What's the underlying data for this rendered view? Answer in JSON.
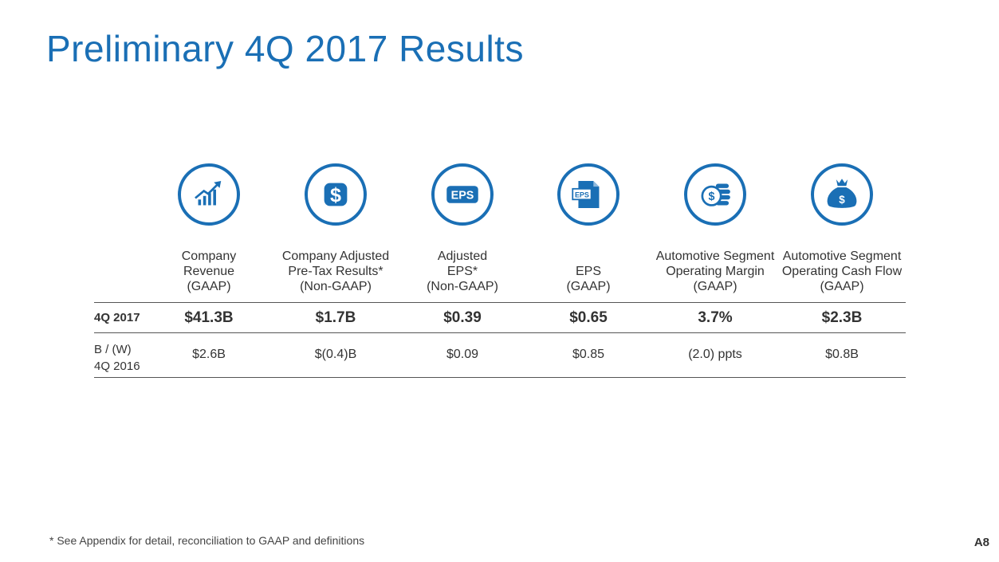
{
  "title": "Preliminary 4Q 2017 Results",
  "icons": {
    "dollar": "$",
    "eps_badge": "EPS",
    "eps_doc": "EPS",
    "coin": "$",
    "bag": "$"
  },
  "columns": [
    {
      "header": [
        "Company",
        "Revenue",
        "(GAAP)"
      ],
      "value": "$41.3B",
      "change": "$2.6B"
    },
    {
      "header": [
        "Company Adjusted",
        "Pre-Tax Results*",
        "(Non-GAAP)"
      ],
      "value": "$1.7B",
      "change": "$(0.4)B"
    },
    {
      "header": [
        "Adjusted",
        "EPS*",
        "(Non-GAAP)"
      ],
      "value": "$0.39",
      "change": "$0.09"
    },
    {
      "header": [
        "EPS",
        "(GAAP)"
      ],
      "value": "$0.65",
      "change": "$0.85"
    },
    {
      "header": [
        "Automotive Segment",
        "Operating Margin",
        "(GAAP)"
      ],
      "value": "3.7%",
      "change": "(2.0) ppts"
    },
    {
      "header": [
        "Automotive Segment",
        "Operating  Cash Flow",
        "(GAAP)"
      ],
      "value": "$2.3B",
      "change": "$0.8B"
    }
  ],
  "rows": {
    "current_label": "4Q 2017",
    "change_label": [
      "B / (W)",
      "4Q 2016"
    ]
  },
  "footnote": "*  See Appendix for detail, reconciliation to GAAP and definitions",
  "page_number": "A8",
  "colors": {
    "accent": "#1a6fb5",
    "text": "#333333"
  }
}
